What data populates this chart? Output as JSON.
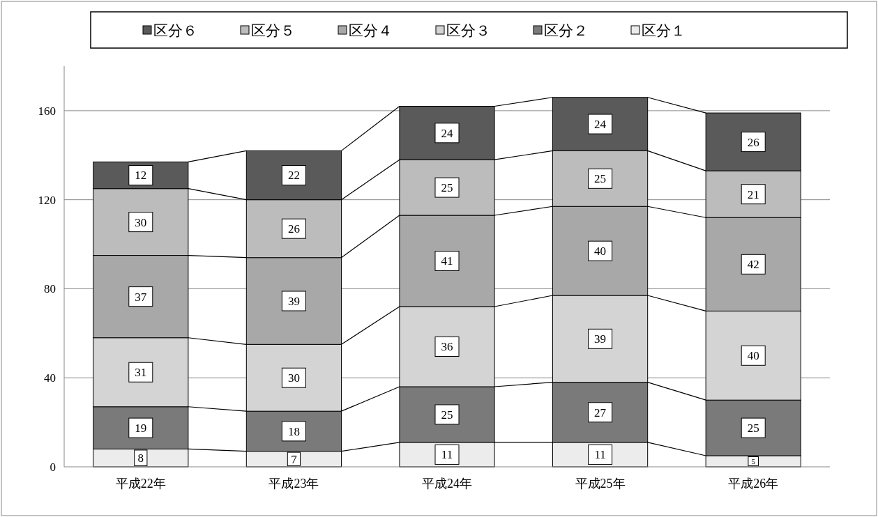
{
  "chart_data": {
    "type": "bar",
    "stacked": true,
    "categories": [
      "平成22年",
      "平成23年",
      "平成24年",
      "平成25年",
      "平成26年"
    ],
    "series": [
      {
        "name": "区分１",
        "color": "#ececec",
        "values": [
          8,
          7,
          11,
          11,
          5
        ]
      },
      {
        "name": "区分２",
        "color": "#7a7a7a",
        "values": [
          19,
          18,
          25,
          27,
          25
        ]
      },
      {
        "name": "区分３",
        "color": "#d4d4d4",
        "values": [
          31,
          30,
          36,
          39,
          40
        ]
      },
      {
        "name": "区分４",
        "color": "#a8a8a8",
        "values": [
          37,
          39,
          41,
          40,
          42
        ]
      },
      {
        "name": "区分５",
        "color": "#bcbcbc",
        "values": [
          30,
          26,
          25,
          25,
          21
        ]
      },
      {
        "name": "区分６",
        "color": "#5a5a5a",
        "values": [
          12,
          22,
          24,
          24,
          26
        ]
      }
    ],
    "ylim": [
      0,
      180
    ],
    "yticks": [
      0,
      40,
      80,
      120,
      160
    ],
    "grid": "y",
    "legend": "top",
    "data_labels": true
  }
}
